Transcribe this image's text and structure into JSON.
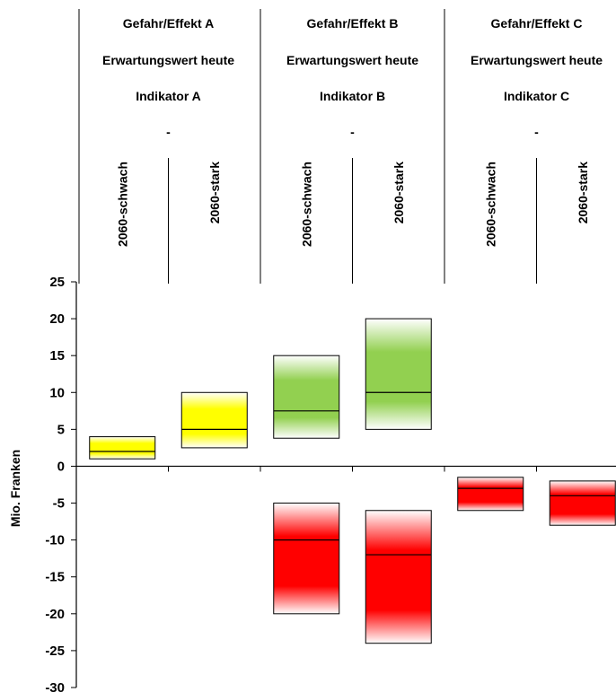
{
  "chart_data": {
    "type": "bar",
    "ylabel": "Mio. Franken",
    "ylim": [
      -30,
      25
    ],
    "yticks": [
      25,
      20,
      15,
      10,
      5,
      0,
      -5,
      -10,
      -15,
      -20,
      -25,
      -30
    ],
    "groups": [
      {
        "name": "Gefahr/Effekt A",
        "measure": "Erwartungswert heute",
        "indicator": "Indikator A",
        "today": "-"
      },
      {
        "name": "Gefahr/Effekt B",
        "measure": "Erwartungswert heute",
        "indicator": "Indikator B",
        "today": "-"
      },
      {
        "name": "Gefahr/Effekt C",
        "measure": "Erwartungswert heute",
        "indicator": "Indikator C",
        "today": "-"
      }
    ],
    "categories": [
      "2060-schwach",
      "2060-stark",
      "2060-schwach",
      "2060-stark",
      "2060-schwach",
      "2060-stark"
    ],
    "boxes": [
      {
        "group": 0,
        "category": 0,
        "low": 1,
        "high": 4,
        "mid": 2,
        "color": "#ffff00"
      },
      {
        "group": 0,
        "category": 1,
        "low": 2.5,
        "high": 10,
        "mid": 5,
        "color": "#ffff00"
      },
      {
        "group": 1,
        "category": 2,
        "low": 3.8,
        "high": 15,
        "mid": 7.5,
        "color": "#92d050"
      },
      {
        "group": 1,
        "category": 3,
        "low": 5,
        "high": 20,
        "mid": 10,
        "color": "#92d050"
      },
      {
        "group": 1,
        "category": 2,
        "low": -20,
        "high": -5,
        "mid": -10,
        "color": "#ff0000"
      },
      {
        "group": 1,
        "category": 3,
        "low": -24,
        "high": -6,
        "mid": -12,
        "color": "#ff0000"
      },
      {
        "group": 2,
        "category": 4,
        "low": -6,
        "high": -1.5,
        "mid": -3,
        "color": "#ff0000"
      },
      {
        "group": 2,
        "category": 5,
        "low": -8,
        "high": -2,
        "mid": -4,
        "color": "#ff0000"
      }
    ]
  }
}
